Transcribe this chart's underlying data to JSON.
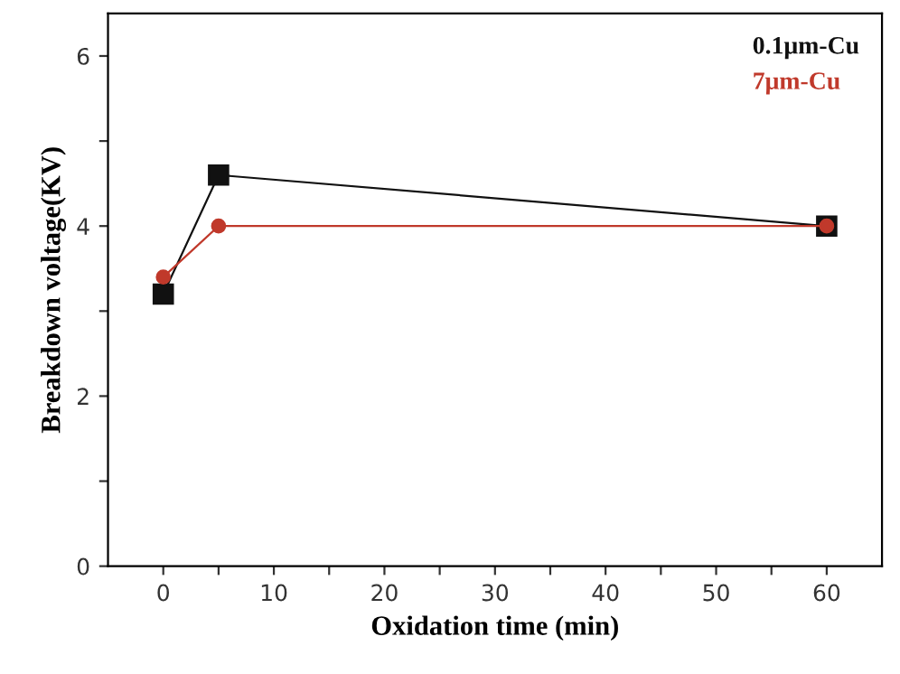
{
  "chart_data": {
    "type": "line",
    "xlabel": "Oxidation time (min)",
    "ylabel": "Breakdown voltage(KV)",
    "x": [
      0,
      5,
      60
    ],
    "series": [
      {
        "name": "0.1μm-Cu",
        "color": "#111111",
        "values": [
          3.2,
          4.6,
          4.0
        ],
        "marker": "square"
      },
      {
        "name": "7μm-Cu",
        "color": "#c0392b",
        "values": [
          3.4,
          4.0,
          4.0
        ],
        "marker": "circle"
      }
    ],
    "xlim": [
      -5,
      65
    ],
    "xticks": [
      0,
      {
        "value": 5,
        "label": null
      },
      10,
      {
        "value": 15,
        "label": null
      },
      20,
      {
        "value": 25,
        "label": null
      },
      30,
      {
        "value": 35,
        "label": null
      },
      40,
      {
        "value": 45,
        "label": null
      },
      50,
      {
        "value": 55,
        "label": null
      },
      60
    ],
    "ylim": [
      0,
      6.5
    ],
    "yticks": [
      0,
      {
        "value": 1,
        "label": null
      },
      2,
      {
        "value": 3,
        "label": null
      },
      4,
      {
        "value": 5,
        "label": null
      },
      6
    ],
    "grid": false,
    "legend": "top right",
    "line_style": "solid"
  }
}
